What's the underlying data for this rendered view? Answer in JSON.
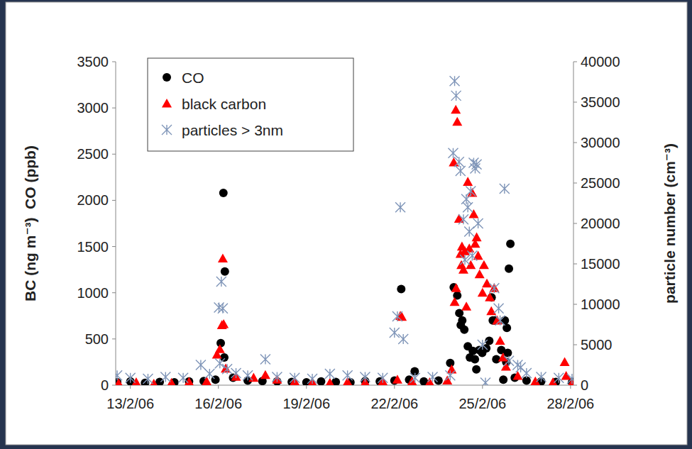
{
  "chart_data": {
    "type": "scatter",
    "y_label": "BC (ng m⁻³)  CO (ppb)",
    "y2_label": "particle number (cm⁻³)",
    "xlim": [
      12.5,
      28.1
    ],
    "xticks": [
      {
        "value": 13,
        "label": "13/2/06"
      },
      {
        "value": 16,
        "label": "16/2/06"
      },
      {
        "value": 19,
        "label": "19/2/06"
      },
      {
        "value": 22,
        "label": "22/2/06"
      },
      {
        "value": 25,
        "label": "25/2/06"
      },
      {
        "value": 28,
        "label": "28/2/06"
      }
    ],
    "ylim": [
      0,
      3500
    ],
    "yticks": [
      0,
      500,
      1000,
      1500,
      2000,
      2500,
      3000,
      3500
    ],
    "y2lim": [
      0,
      40000
    ],
    "y2ticks": [
      0,
      5000,
      10000,
      15000,
      20000,
      25000,
      30000,
      35000,
      40000
    ],
    "grid": false,
    "legend": "upper left",
    "series": [
      {
        "name": "CO",
        "color": "#000000",
        "marker": "circle",
        "x": [
          12.55,
          13.0,
          13.5,
          14.0,
          14.5,
          15.0,
          15.5,
          15.9,
          16.08,
          16.17,
          16.2,
          16.22,
          16.5,
          17.0,
          17.5,
          18.0,
          18.5,
          19.0,
          19.5,
          20.0,
          20.5,
          21.0,
          21.5,
          22.0,
          22.23,
          22.5,
          22.69,
          23.0,
          23.5,
          23.9,
          24.02,
          24.14,
          24.21,
          24.26,
          24.31,
          24.38,
          24.5,
          24.57,
          24.67,
          24.74,
          24.79,
          24.89,
          24.99,
          25.13,
          25.23,
          25.31,
          25.35,
          25.42,
          25.47,
          25.64,
          25.71,
          25.76,
          25.81,
          25.83,
          25.86,
          25.9,
          25.95,
          26.1,
          26.5,
          27.0,
          27.5,
          28.05
        ],
        "values": [
          30,
          40,
          25,
          35,
          30,
          40,
          45,
          60,
          455,
          2080,
          300,
          1230,
          80,
          50,
          45,
          40,
          35,
          30,
          40,
          35,
          30,
          45,
          40,
          50,
          1040,
          60,
          150,
          40,
          50,
          240,
          1060,
          970,
          780,
          650,
          700,
          600,
          420,
          300,
          370,
          280,
          170,
          380,
          350,
          400,
          480,
          950,
          700,
          700,
          280,
          380,
          60,
          700,
          250,
          620,
          350,
          1260,
          1530,
          80,
          50,
          40,
          35,
          30
        ]
      },
      {
        "name": "black carbon",
        "color": "#ff0000",
        "marker": "triangle",
        "x": [
          12.6,
          13.2,
          13.8,
          14.4,
          15.0,
          15.6,
          15.95,
          16.05,
          16.12,
          16.15,
          16.18,
          16.25,
          16.6,
          17.2,
          17.6,
          18.0,
          18.6,
          19.2,
          19.8,
          20.4,
          21.0,
          21.6,
          22.1,
          22.2,
          22.25,
          22.6,
          23.2,
          23.8,
          23.95,
          24.02,
          24.05,
          24.09,
          24.1,
          24.14,
          24.2,
          24.25,
          24.28,
          24.3,
          24.35,
          24.4,
          24.45,
          24.5,
          24.55,
          24.6,
          24.65,
          24.7,
          24.75,
          24.8,
          24.85,
          24.9,
          25.0,
          25.05,
          25.15,
          25.25,
          25.3,
          25.4,
          25.5,
          25.6,
          25.7,
          25.8,
          26.2,
          26.8,
          27.4,
          27.8,
          27.85,
          28.05
        ],
        "values": [
          20,
          30,
          15,
          25,
          35,
          40,
          330,
          390,
          650,
          1370,
          660,
          180,
          90,
          80,
          110,
          60,
          40,
          30,
          25,
          35,
          30,
          40,
          60,
          750,
          740,
          40,
          30,
          50,
          170,
          2410,
          900,
          2980,
          1050,
          2850,
          1800,
          1420,
          1300,
          1500,
          1250,
          1450,
          850,
          2200,
          1480,
          1300,
          2080,
          1850,
          1530,
          1600,
          1400,
          1200,
          1000,
          1300,
          1100,
          950,
          800,
          1050,
          700,
          480,
          300,
          200,
          100,
          40,
          30,
          250,
          100,
          20
        ]
      },
      {
        "name": "particles > 3nm",
        "color": "#7f95b8",
        "marker": "asterisk",
        "axis": "y2",
        "x": [
          12.55,
          13.0,
          13.6,
          14.2,
          14.8,
          15.4,
          15.7,
          16.02,
          16.05,
          16.1,
          16.15,
          16.3,
          16.6,
          17.0,
          17.6,
          18.0,
          18.6,
          19.2,
          19.8,
          20.4,
          21.0,
          21.6,
          22.0,
          22.1,
          22.2,
          22.3,
          22.7,
          23.3,
          23.9,
          24.0,
          24.05,
          24.1,
          24.2,
          24.25,
          24.35,
          24.4,
          24.45,
          24.5,
          24.55,
          24.6,
          24.65,
          24.7,
          24.75,
          24.8,
          24.85,
          25.0,
          25.1,
          25.4,
          25.55,
          25.6,
          25.75,
          25.9,
          26.2,
          26.3,
          26.5,
          27.0,
          27.6,
          28.05
        ],
        "values": [
          1200,
          900,
          800,
          1000,
          900,
          2500,
          1400,
          9600,
          2700,
          12800,
          9500,
          2000,
          1500,
          1200,
          3200,
          1000,
          900,
          800,
          1400,
          1200,
          1000,
          900,
          6500,
          8500,
          22000,
          5700,
          900,
          1000,
          1200,
          28700,
          37600,
          35800,
          27600,
          26500,
          20500,
          15500,
          23000,
          22000,
          19000,
          24000,
          16000,
          27500,
          26800,
          27300,
          20000,
          5000,
          300,
          12000,
          9500,
          8000,
          24300,
          3000,
          2500,
          2200,
          1500,
          1000,
          900,
          800
        ]
      }
    ]
  }
}
